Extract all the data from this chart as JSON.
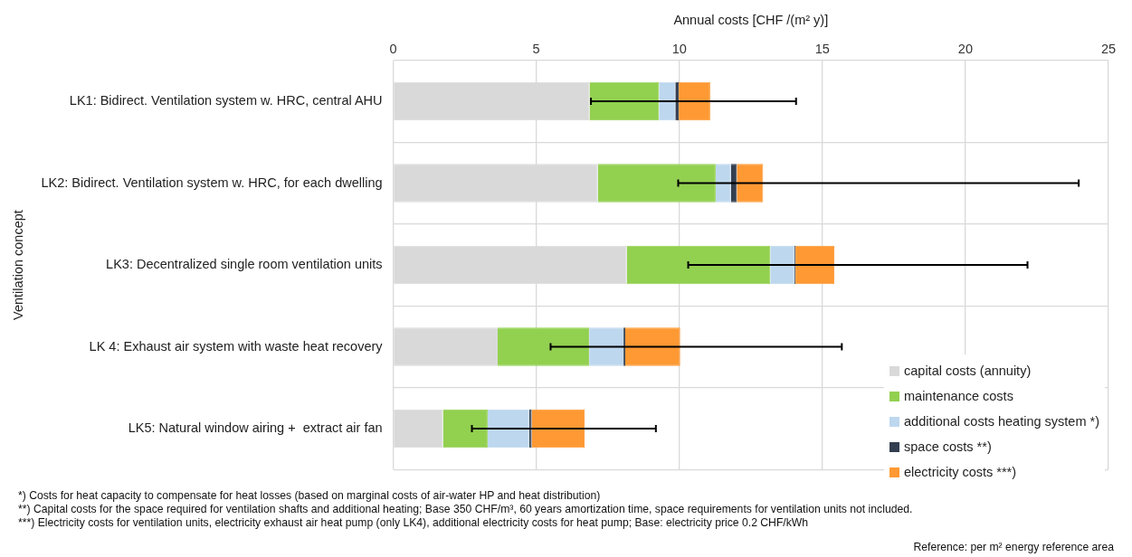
{
  "chart_data": {
    "type": "bar",
    "orientation": "horizontal",
    "stacked": true,
    "xlabel": "Annual costs [CHF /(m² y)]",
    "ylabel": "Ventilation concept",
    "categories": [
      "LK1: Bidirect. Ventilation system w. HRC, central AHU",
      "LK2: Bidirect. Ventilation system w. HRC, for each dwelling",
      "LK3: Decentralized single room ventilation units",
      "LK 4: Exhaust air system with waste heat recovery",
      "LK5: Natural window airing +  extract air fan"
    ],
    "series": [
      {
        "name": "capital costs (annuity)",
        "color": "#d9d9d9",
        "values": [
          6.86,
          7.15,
          8.16,
          3.65,
          1.74
        ]
      },
      {
        "name": "maintenance costs",
        "color": "#92d050",
        "values": [
          2.43,
          4.12,
          5.02,
          3.2,
          1.56
        ]
      },
      {
        "name": "additional costs heating system *)",
        "color": "#bdd7ee",
        "values": [
          0.57,
          0.53,
          0.84,
          1.2,
          1.45
        ]
      },
      {
        "name": "space costs **)",
        "color": "#333f50",
        "values": [
          0.12,
          0.21,
          0.04,
          0.06,
          0.09
        ]
      },
      {
        "name": "electricity costs ***)",
        "color": "#ff9933",
        "values": [
          1.1,
          0.92,
          1.36,
          1.92,
          1.85
        ],
        "errors": [
          [
            6.91,
            14.08
          ],
          [
            9.96,
            23.96
          ],
          [
            10.31,
            22.17
          ],
          [
            5.5,
            15.68
          ],
          [
            2.75,
            9.18
          ]
        ]
      }
    ],
    "xlim": [
      0,
      25
    ],
    "xticks": [
      0,
      5,
      10,
      15,
      20,
      25
    ],
    "grid": true,
    "legend": "bottom right",
    "annotations": [
      "*)    Costs for heat capacity to compensate for heat losses (based on marginal costs of air-water HP and heat distribution)",
      "**)    Capital costs for the space required for ventilation shafts and additional heating; Base 350 CHF/m³, 60 years amortization time, space requirements for ventilation units not included.",
      "***)  Electricity costs for ventilation units, electricity exhaust air heat pump (only LK4), additional electricity costs for heat pump; Base: electricity price 0.2 CHF/kWh",
      "Reference: per m² energy reference area"
    ]
  }
}
